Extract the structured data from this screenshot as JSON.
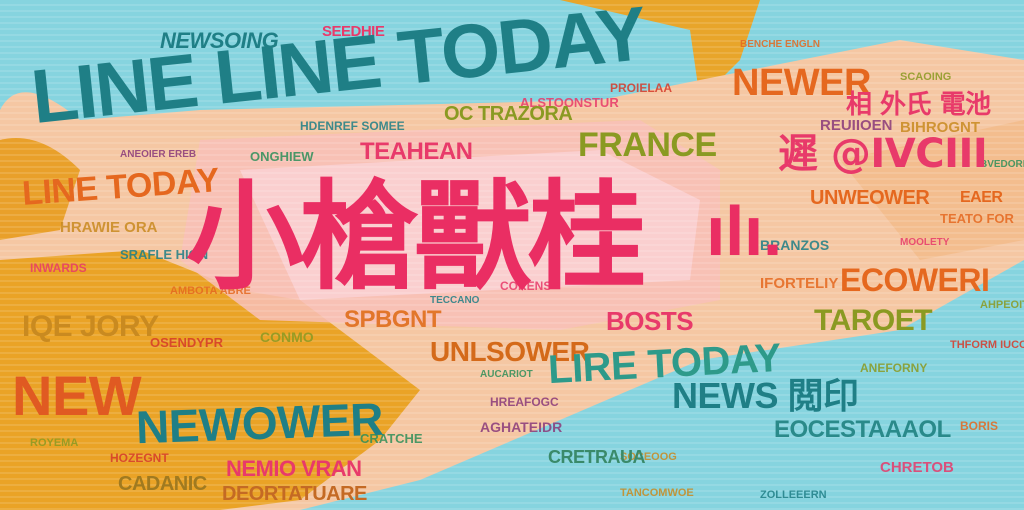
{
  "headline": {
    "line_line_today": "LINE LINE TODAY",
    "newsoing": "NEWSOING",
    "seedhie": "SEEDHIE"
  },
  "big_cjk": "小槍獸桂",
  "small_cjk_mark": "ılı.",
  "words": {
    "newer": "NEWER",
    "cjk_right": "相 外氏 電池",
    "france": "FRANCE",
    "line_today_left": "LINE TODAY",
    "oc_trazora": "OC TRAZORA",
    "teahean": "TEAHEAN",
    "cjk_pink_right": "遲 @IVCIII",
    "unwer_ower": "UNWEOWER",
    "eaer": "EAER",
    "spbgnt": "SPBGNT",
    "bosts": "BOSTS",
    "ecowerl": "ECOWERI",
    "taroet": "TAROET",
    "qe_jory": "IQE JORY",
    "unlsower": "UNLSOWER",
    "line_today_mid": "LIRE TODAY",
    "new": "NEW",
    "news_cjk": "NEWS 閲印",
    "newower": "NEWOWER",
    "eocestaaaol": "EOCESTAAAOL",
    "nemio_vran": "NEMIO VRAN",
    "cadanic": "CADANIC",
    "deortatuare": "DEORTATUARE",
    "cretraua": "CRETRAUA"
  },
  "fillers": [
    "HDENREF SOMEE",
    "ALSTOONSTUR",
    "BENCHE ENGLN",
    "SCAOING",
    "PROIELAA",
    "ONGHIEW",
    "ANEOIER EREB",
    "HRAWIE ORA",
    "SRAFLE HIGN",
    "INWARDS",
    "AMBOTA ABRE",
    "CONMO",
    "OSENDYPR",
    "AUCARIOT",
    "HREAFOGC",
    "SOCEOOG",
    "BRANZOS",
    "MOOLETY",
    "TEATO FOR",
    "ANEFORNY",
    "THFORM IUCO",
    "BVEDORE",
    "REUIIOEN",
    "BIHROGNT",
    "TECCANO",
    "CORENS",
    "IFORTELIY",
    "ROYEMA",
    "HOZEGNT",
    "CRATCHE",
    "AGHATEIDR",
    "TANCOMWOE",
    "ZOLLEEERN",
    "CHRETOB",
    "BORIS",
    "AHPEOITA"
  ],
  "colors": {
    "teal": "#1f7f86",
    "pink": "#e83a6a",
    "orange": "#e5681f",
    "olive": "#8a9a22",
    "sky": "#7fd3e0",
    "peach": "#f6c9a8",
    "mustard": "#e9a32a"
  }
}
